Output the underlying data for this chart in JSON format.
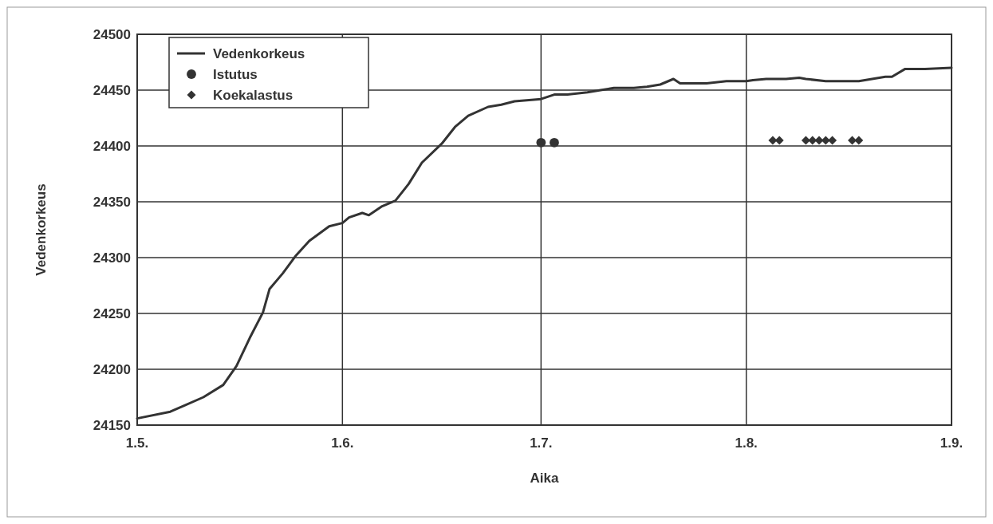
{
  "chart_data": {
    "type": "line",
    "xlabel": "Aika",
    "ylabel": "Vedenkorkeus",
    "xlim": [
      "--05-01",
      "--09-01"
    ],
    "xticks": [
      {
        "value": "--05-01",
        "label": "1.5."
      },
      {
        "value": "--06-01",
        "label": "1.6."
      },
      {
        "value": "--07-01",
        "label": "1.7."
      },
      {
        "value": "--08-01",
        "label": "1.8."
      },
      {
        "value": "--09-01",
        "label": "1.9."
      }
    ],
    "ylim": [
      24150,
      24500
    ],
    "yticks": [
      24150,
      24200,
      24250,
      24300,
      24350,
      24400,
      24450,
      24500
    ],
    "grid": true,
    "legend": "top left",
    "series": [
      {
        "name": "Vedenkorkeus",
        "color": "#333333",
        "marker": "none",
        "line_style": "solid",
        "x": [
          "--05-01",
          "--05-06",
          "--05-11",
          "--05-14",
          "--05-16",
          "--05-18",
          "--05-20",
          "--05-21",
          "--05-23",
          "--05-25",
          "--05-27",
          "--05-30",
          "--06-01",
          "--06-02",
          "--06-04",
          "--06-05",
          "--06-07",
          "--06-09",
          "--06-11",
          "--06-13",
          "--06-16",
          "--06-18",
          "--06-20",
          "--06-23",
          "--06-25",
          "--06-27",
          "--07-01",
          "--07-03",
          "--07-05",
          "--07-08",
          "--07-10",
          "--07-12",
          "--07-15",
          "--07-17",
          "--07-19",
          "--07-21",
          "--07-22",
          "--07-24",
          "--07-26",
          "--07-29",
          "--08-01",
          "--08-02",
          "--08-04",
          "--08-07",
          "--08-09",
          "--08-10",
          "--08-13",
          "--08-15",
          "--08-18",
          "--08-20",
          "--08-22",
          "--08-23",
          "--08-25",
          "--08-28",
          "--09-01"
        ],
        "values": [
          24156,
          24162,
          24175,
          24186,
          24203,
          24228,
          24251,
          24272,
          24286,
          24302,
          24315,
          24328,
          24331,
          24336,
          24340,
          24338,
          24346,
          24351,
          24366,
          24385,
          24402,
          24417,
          24427,
          24435,
          24437,
          24440,
          24442,
          24446,
          24446,
          24448,
          24450,
          24452,
          24452,
          24453,
          24455,
          24460,
          24456,
          24456,
          24456,
          24458,
          24458,
          24459,
          24460,
          24460,
          24461,
          24460,
          24458,
          24458,
          24458,
          24460,
          24462,
          24462,
          24469,
          24469,
          24470
        ]
      },
      {
        "name": "Istutus",
        "type": "scatter",
        "color": "#333333",
        "marker": "circle",
        "x": [
          "--07-01",
          "--07-03"
        ],
        "values": [
          24403,
          24403
        ]
      },
      {
        "name": "Koekalastus",
        "type": "scatter",
        "color": "#333333",
        "marker": "diamond",
        "x": [
          "--08-05",
          "--08-06",
          "--08-10",
          "--08-11",
          "--08-12",
          "--08-13",
          "--08-14",
          "--08-17",
          "--08-18"
        ],
        "values": [
          24405,
          24405,
          24405,
          24405,
          24405,
          24405,
          24405,
          24405,
          24405
        ]
      }
    ]
  }
}
